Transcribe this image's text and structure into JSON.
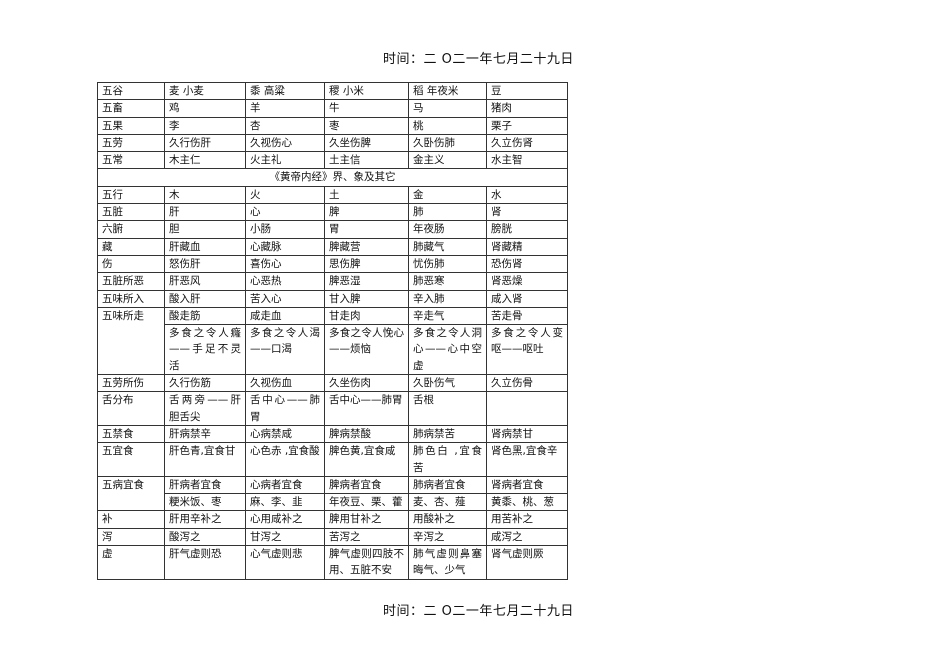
{
  "header": {
    "time": "时间：二 O二一年七月二十九日"
  },
  "footer": {
    "time": "时间：二 O二一年七月二十九日"
  },
  "table": {
    "rows_top": [
      {
        "label": "五谷",
        "cells": [
          "麦 小麦",
          "黍 高粱",
          "稷 小米",
          "稻 年夜米",
          "豆"
        ]
      },
      {
        "label": "五畜",
        "cells": [
          "鸡",
          "羊",
          "牛",
          "马",
          "猪肉"
        ]
      },
      {
        "label": "五果",
        "cells": [
          "李",
          "杏",
          "枣",
          "桃",
          "栗子"
        ]
      },
      {
        "label": "五劳",
        "cells": [
          "久行伤肝",
          "久视伤心",
          "久坐伤脾",
          "久卧伤肺",
          "久立伤肾"
        ]
      },
      {
        "label": "五常",
        "cells": [
          "木主仁",
          "火主礼",
          "土主信",
          "金主义",
          "水主智"
        ]
      }
    ],
    "section_title": "《黄帝内经》界、象及其它",
    "rows": [
      {
        "label": "五行",
        "cells": [
          "木",
          "火",
          "土",
          "金",
          "水"
        ]
      },
      {
        "label": "五脏",
        "cells": [
          "肝",
          "心",
          "脾",
          "肺",
          "肾"
        ]
      },
      {
        "label": "六腑",
        "cells": [
          "胆",
          "小肠",
          "胃",
          "年夜肠",
          "膀胱"
        ]
      },
      {
        "label": "藏",
        "cells": [
          "肝藏血",
          "心藏脉",
          "脾藏营",
          "肺藏气",
          "肾藏精"
        ]
      },
      {
        "label": "伤",
        "cells": [
          "怒伤肝",
          "喜伤心",
          "思伤脾",
          "忧伤肺",
          "恐伤肾"
        ]
      },
      {
        "label": "五脏所恶",
        "cells": [
          "肝恶风",
          "心恶热",
          "脾恶湿",
          "肺恶寒",
          "肾恶燥"
        ]
      },
      {
        "label": "五味所入",
        "cells": [
          "酸入肝",
          "苦入心",
          "甘入脾",
          "辛入肺",
          "咸入肾"
        ]
      },
      {
        "label": "五味所走",
        "rowspan": 2,
        "cells": [
          "酸走筋",
          "咸走血",
          "甘走肉",
          "辛走气",
          "苦走骨"
        ]
      },
      {
        "cells": [
          "多食之令人癃——手足不灵活",
          "多食之令人渴——口渴",
          "多食之令人悗心——烦恼",
          "多食之令人洞心——心中空虚",
          "多食之令人变呕——呕吐"
        ]
      },
      {
        "label": "五劳所伤",
        "cells": [
          "久行伤筋",
          "久视伤血",
          "久坐伤肉",
          "久卧伤气",
          "久立伤骨"
        ]
      },
      {
        "label": "舌分布",
        "cells": [
          "舌两旁——肝胆舌尖",
          "舌中心——肺胃",
          "舌中心——肺胃",
          "舌根",
          ""
        ]
      },
      {
        "label": "五禁食",
        "cells": [
          "肝病禁辛",
          "心病禁咸",
          "脾病禁酸",
          "肺病禁苦",
          "肾病禁甘"
        ]
      },
      {
        "label": "五宜食",
        "cells": [
          "肝色青,宜食甘",
          "心色赤 ,宜食酸",
          "脾色黄,宜食咸",
          "肺色白 ,宜食苦",
          "肾色黑,宜食辛"
        ]
      },
      {
        "label": "五病宜食",
        "rowspan": 2,
        "cells": [
          "肝病者宜食",
          "心病者宜食",
          "脾病者宜食",
          "肺病者宜食",
          "肾病者宜食"
        ]
      },
      {
        "cells": [
          "粳米饭、枣",
          "麻、李、韭",
          "年夜豆、栗、藿",
          "麦、杏、薤",
          "黄黍、桃、葱"
        ]
      },
      {
        "label": "补",
        "cells": [
          "肝用辛补之",
          "心用咸补之",
          "脾用甘补之",
          "用酸补之",
          "用苦补之"
        ]
      },
      {
        "label": "泻",
        "cells": [
          "酸泻之",
          "甘泻之",
          "苦泻之",
          "辛泻之",
          "咸泻之"
        ]
      },
      {
        "label": "虚",
        "cells": [
          "肝气虚则恐",
          "心气虚则悲",
          "脾气虚则四肢不用、五脏不安",
          "肺气虚则鼻塞晦气、少气",
          "肾气虚则厥"
        ]
      }
    ]
  }
}
